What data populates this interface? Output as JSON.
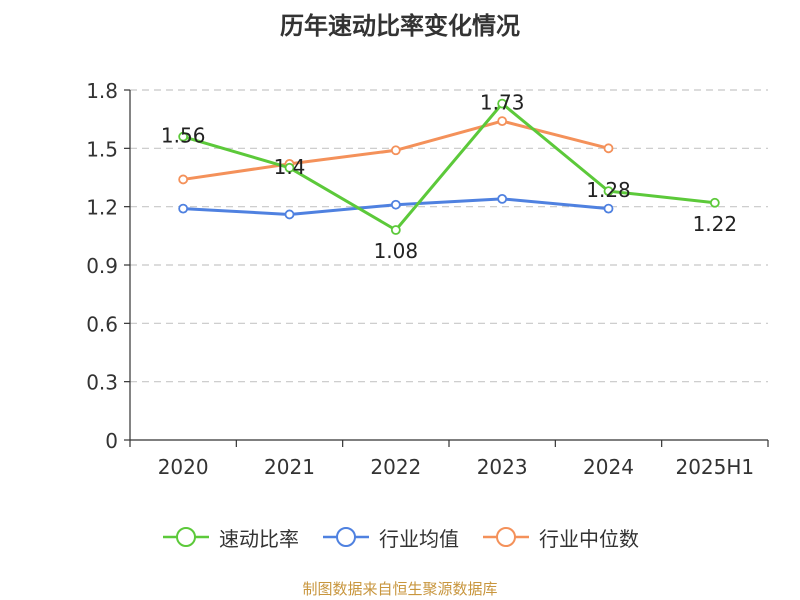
{
  "title": "历年速动比率变化情况",
  "source": "制图数据来自恒生聚源数据库",
  "chart_data": {
    "type": "line",
    "categories": [
      "2020",
      "2021",
      "2022",
      "2023",
      "2024",
      "2025H1"
    ],
    "ylim": [
      0,
      1.8
    ],
    "yticks": [
      "0",
      "0.3",
      "0.6",
      "0.9",
      "1.2",
      "1.5",
      "1.8"
    ],
    "grid": true,
    "legend_position": "bottom",
    "series": [
      {
        "name": "速动比率",
        "color": "#5cc93a",
        "values": [
          1.56,
          1.4,
          1.08,
          1.73,
          1.28,
          1.22
        ],
        "labels": [
          "1.56",
          "1.4",
          "1.08",
          "1.73",
          "1.28",
          "1.22"
        ],
        "show_labels": true
      },
      {
        "name": "行业均值",
        "color": "#4f81e0",
        "values": [
          1.19,
          1.16,
          1.21,
          1.24,
          1.19,
          null
        ],
        "show_labels": false
      },
      {
        "name": "行业中位数",
        "color": "#f4915a",
        "values": [
          1.34,
          1.42,
          1.49,
          1.64,
          1.5,
          null
        ],
        "show_labels": false
      }
    ]
  }
}
